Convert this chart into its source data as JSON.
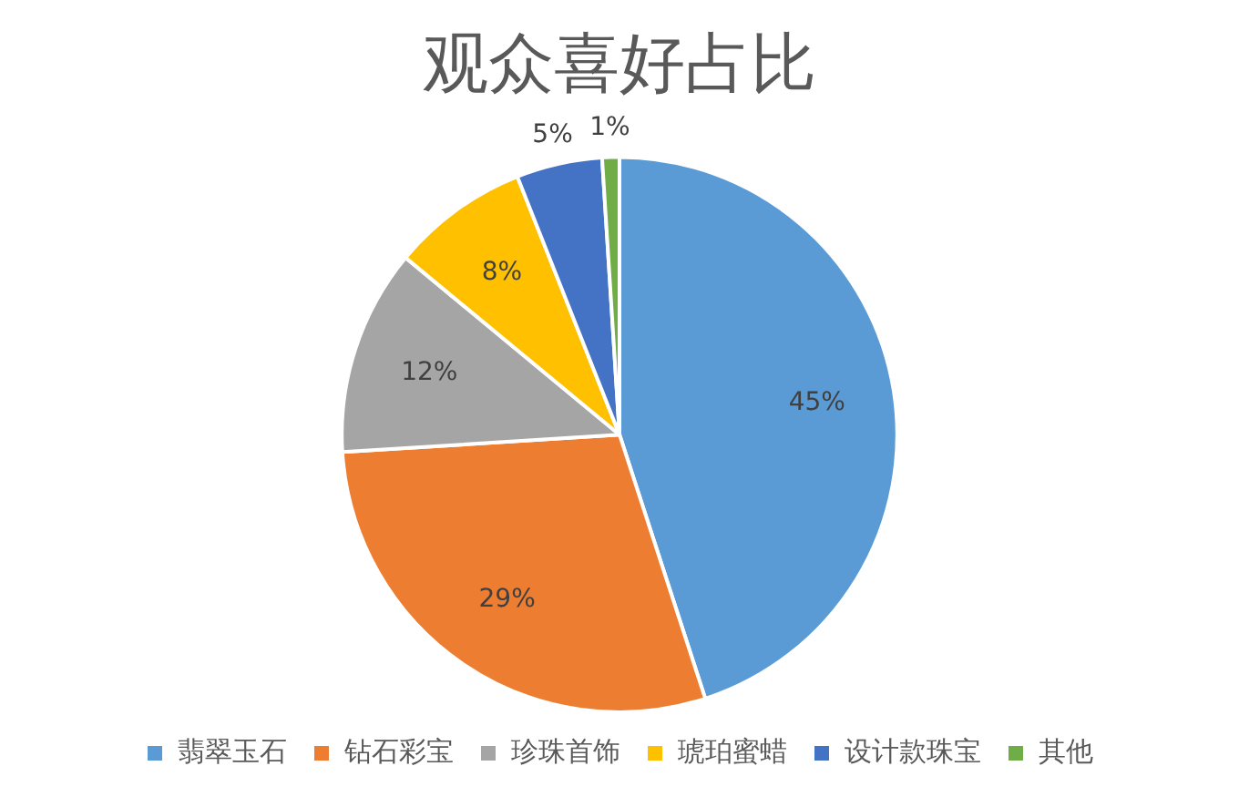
{
  "chart_data": {
    "type": "pie",
    "title": "观众喜好占比",
    "categories": [
      "翡翠玉石",
      "钻石彩宝",
      "珍珠首饰",
      "琥珀蜜蜡",
      "设计款珠宝",
      "其他"
    ],
    "values": [
      45,
      29,
      12,
      8,
      5,
      1
    ],
    "colors": [
      "#5b9bd5",
      "#ed7d31",
      "#a5a5a5",
      "#ffc000",
      "#4472c4",
      "#70ad47"
    ],
    "value_labels": [
      "45%",
      "29%",
      "12%",
      "8%",
      "5%",
      "1%"
    ],
    "legend": "bottom"
  }
}
